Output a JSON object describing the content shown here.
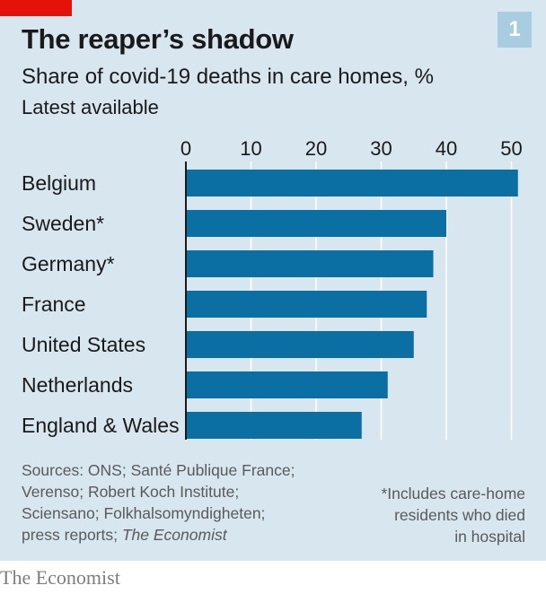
{
  "chart_number": "1",
  "title": "The reaper’s shadow",
  "subtitle": "Share of covid-19 deaths in care homes, %",
  "note": "Latest available",
  "sources": {
    "line1": "Sources: ONS; Santé Publique France;",
    "line2": "Verenso; Robert Koch Institute;",
    "line3": "Sciensano; Folkhalsomyndigheten;",
    "line4_prefix": "press reports; ",
    "line4_italic": "The Economist"
  },
  "footnote": {
    "line1": "*Includes care-home",
    "line2": "residents who died",
    "line3": "in hospital"
  },
  "brand": "The Economist",
  "colors": {
    "bar": "#0b6fa4",
    "panel": "#d7e6ef",
    "grid": "#ffffff",
    "accent": "#e3120b",
    "number_box": "#a9cde0"
  },
  "chart_data": {
    "type": "bar",
    "orientation": "horizontal",
    "categories": [
      "Belgium",
      "Sweden*",
      "Germany*",
      "France",
      "United States",
      "Netherlands",
      "England & Wales"
    ],
    "values": [
      51,
      40,
      38,
      37,
      35,
      31,
      27
    ],
    "xlim": [
      0,
      52
    ],
    "xticks": [
      0,
      10,
      20,
      30,
      40,
      50
    ],
    "tick_labels": [
      "0",
      "10",
      "20",
      "30",
      "40",
      "50"
    ],
    "grid": true
  }
}
